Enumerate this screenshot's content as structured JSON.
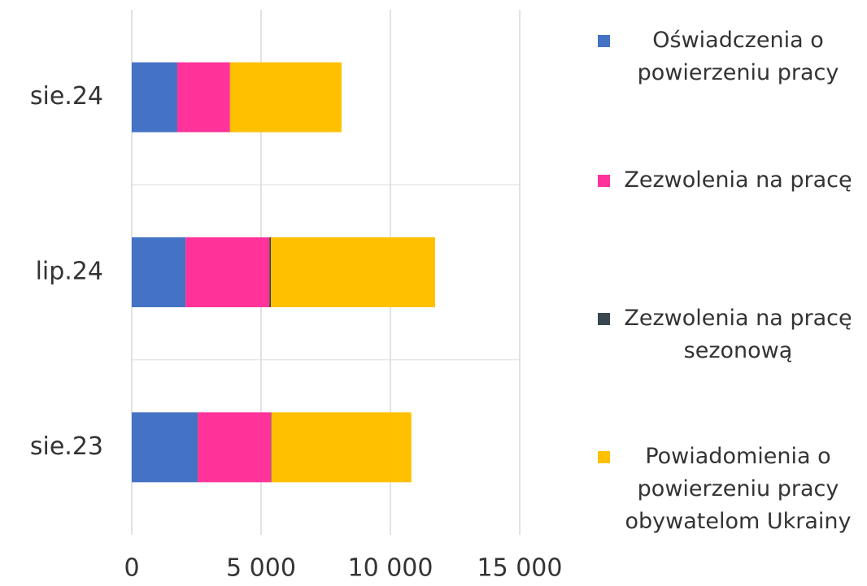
{
  "chart_data": {
    "type": "stacked_barh",
    "categories": [
      "sie.24",
      "lip.24",
      "sie.23"
    ],
    "series": [
      {
        "name": "Oświadczenia o powierzeniu pracy",
        "color": "#4472c4",
        "values": [
          1760,
          2080,
          2550
        ]
      },
      {
        "name": "Zezwolenia na pracę",
        "color": "#ff3399",
        "values": [
          2040,
          3240,
          2830
        ]
      },
      {
        "name": "Zezwolenia na pracę sezonową",
        "color": "#3a4750",
        "values": [
          0,
          60,
          20
        ]
      },
      {
        "name": "Powiadomienia o powierzeniu pracy obywatelom Ukrainy",
        "color": "#ffc000",
        "values": [
          4310,
          6350,
          5410
        ]
      }
    ],
    "xlim": [
      0,
      15000
    ],
    "xticks": [
      0,
      {
        "value": 5000,
        "label": "5 000"
      },
      {
        "value": 10000,
        "label": "10 000"
      },
      {
        "value": 15000,
        "label": "15 000"
      }
    ],
    "grid": true,
    "legend": "right"
  }
}
